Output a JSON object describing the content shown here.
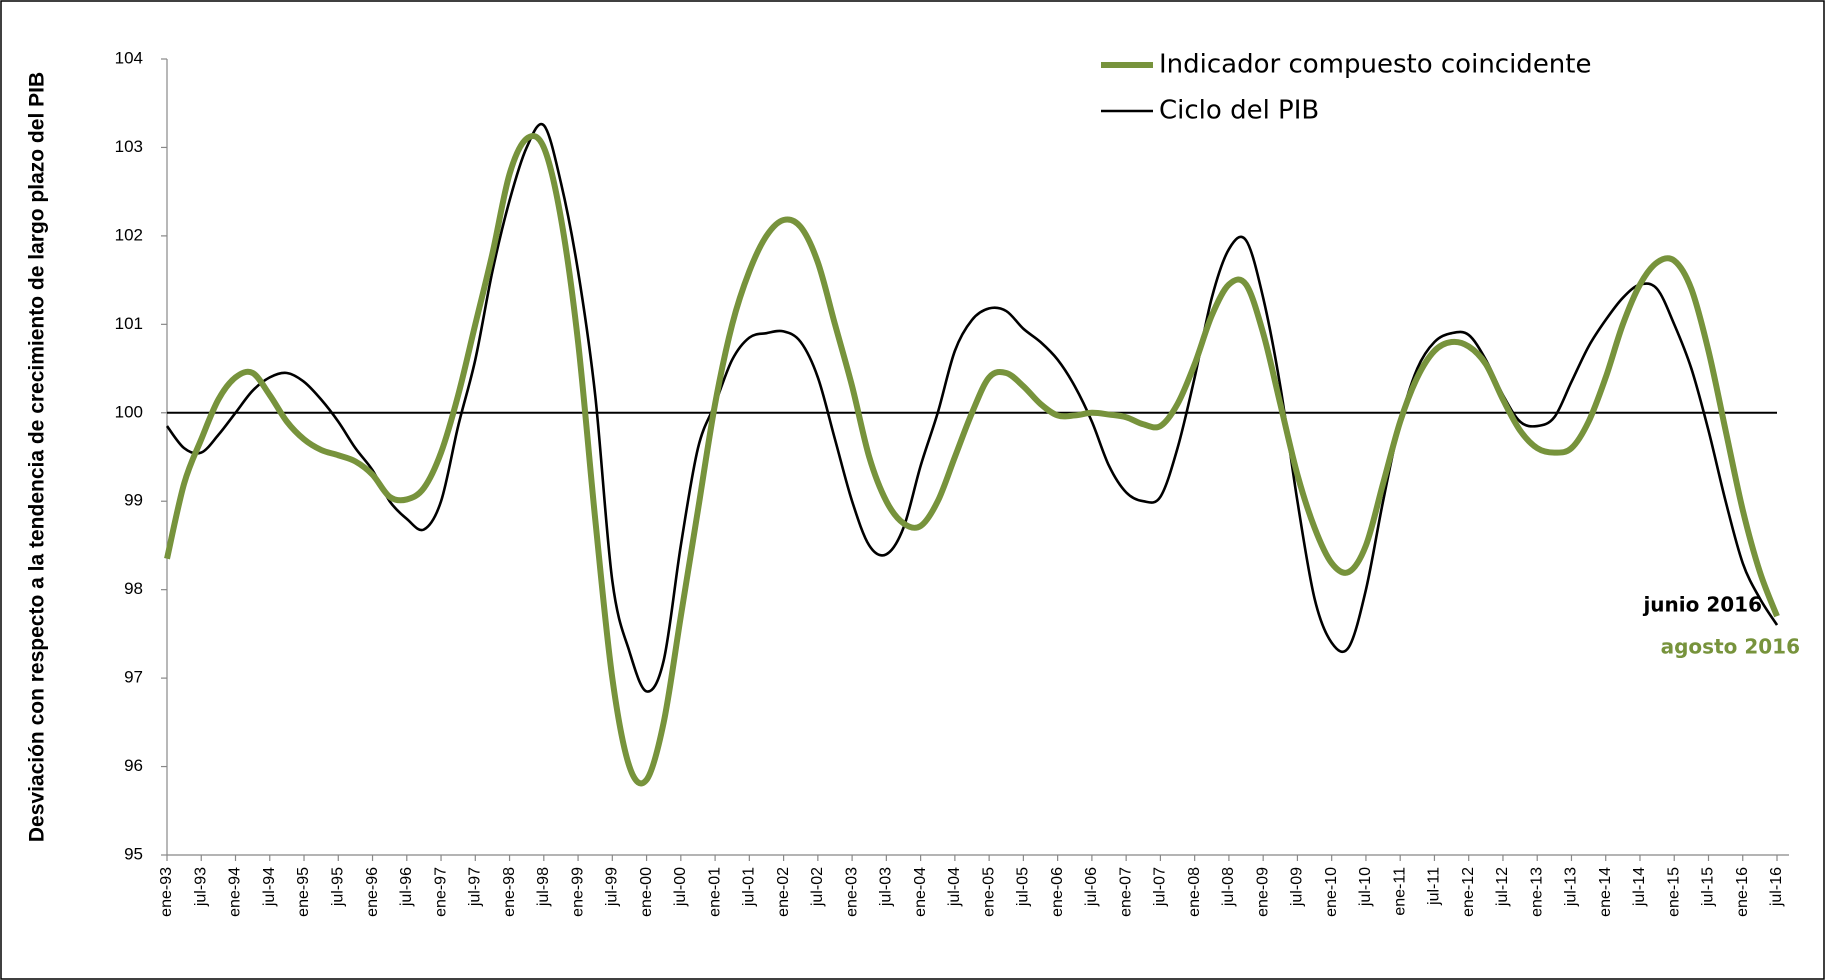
{
  "chart_data": {
    "type": "line",
    "y_axis_label": "Desviación con respecto a la tendencia de crecimiento de largo plazo del PIB",
    "categories": [
      "ene-93",
      null,
      "jul-93",
      null,
      "ene-94",
      null,
      "jul-94",
      null,
      "ene-95",
      null,
      "jul-95",
      null,
      "ene-96",
      null,
      "jul-96",
      null,
      "ene-97",
      null,
      "jul-97",
      null,
      "ene-98",
      null,
      "jul-98",
      null,
      "ene-99",
      null,
      "jul-99",
      null,
      "ene-00",
      null,
      "jul-00",
      null,
      "ene-01",
      null,
      "jul-01",
      null,
      "ene-02",
      null,
      "jul-02",
      null,
      "ene-03",
      null,
      "jul-03",
      null,
      "ene-04",
      null,
      "jul-04",
      null,
      "ene-05",
      null,
      "jul-05",
      null,
      "ene-06",
      null,
      "jul-06",
      null,
      "ene-07",
      null,
      "jul-07",
      null,
      "ene-08",
      null,
      "jul-08",
      null,
      "ene-09",
      null,
      "jul-09",
      null,
      "ene-10",
      null,
      "jul-10",
      null,
      "ene-11",
      null,
      "jul-11",
      null,
      "ene-12",
      null,
      "jul-12",
      null,
      "ene-13",
      null,
      "jul-13",
      null,
      "ene-14",
      null,
      "jul-14",
      null,
      "ene-15",
      null,
      "jul-15",
      null,
      "ene-16",
      null,
      "jul-16"
    ],
    "series": [
      {
        "name": "Indicador compuesto coincidente",
        "color": "#77933c",
        "values": [
          98.35,
          99.2,
          99.7,
          100.15,
          100.4,
          100.45,
          100.2,
          99.9,
          99.7,
          99.58,
          99.52,
          99.45,
          99.3,
          99.05,
          99.02,
          99.15,
          99.55,
          100.2,
          101.0,
          101.8,
          102.7,
          103.1,
          103.0,
          102.2,
          100.8,
          98.8,
          97.0,
          96.0,
          95.85,
          96.5,
          97.7,
          98.9,
          100.1,
          101.0,
          101.6,
          102.0,
          102.18,
          102.1,
          101.7,
          101.0,
          100.3,
          99.5,
          99.0,
          98.75,
          98.72,
          99.0,
          99.5,
          100.0,
          100.4,
          100.45,
          100.3,
          100.1,
          99.97,
          99.97,
          100.0,
          99.98,
          99.95,
          99.87,
          99.85,
          100.1,
          100.55,
          101.1,
          101.45,
          101.45,
          100.9,
          100.1,
          99.3,
          98.7,
          98.3,
          98.2,
          98.5,
          99.2,
          99.9,
          100.4,
          100.7,
          100.8,
          100.75,
          100.55,
          100.15,
          99.8,
          99.6,
          99.55,
          99.6,
          99.9,
          100.4,
          101.0,
          101.45,
          101.7,
          101.72,
          101.4,
          100.7,
          99.8,
          98.9,
          98.2,
          97.7
        ]
      },
      {
        "name": "Ciclo del PIB",
        "color": "#000000",
        "values": [
          99.85,
          99.6,
          99.55,
          99.75,
          100.0,
          100.25,
          100.4,
          100.45,
          100.35,
          100.15,
          99.9,
          99.6,
          99.35,
          99.0,
          98.8,
          98.68,
          99.0,
          99.85,
          100.6,
          101.6,
          102.4,
          103.0,
          103.25,
          102.6,
          101.6,
          100.2,
          98.1,
          97.3,
          96.85,
          97.2,
          98.5,
          99.6,
          100.1,
          100.6,
          100.85,
          100.9,
          100.92,
          100.8,
          100.4,
          99.7,
          99.0,
          98.5,
          98.4,
          98.7,
          99.4,
          100.0,
          100.7,
          101.05,
          101.18,
          101.15,
          100.95,
          100.8,
          100.6,
          100.3,
          99.9,
          99.4,
          99.1,
          99.0,
          99.05,
          99.6,
          100.4,
          101.3,
          101.85,
          101.95,
          101.3,
          100.3,
          99.0,
          97.9,
          97.4,
          97.35,
          98.0,
          99.0,
          99.9,
          100.5,
          100.8,
          100.9,
          100.88,
          100.6,
          100.2,
          99.9,
          99.85,
          99.95,
          100.35,
          100.75,
          101.05,
          101.3,
          101.45,
          101.4,
          101.0,
          100.5,
          99.8,
          99.0,
          98.3,
          97.9,
          97.6
        ]
      }
    ],
    "annotations": [
      "junio 2016",
      "agosto 2016"
    ],
    "reference_line": 100,
    "ylim": [
      95,
      104
    ],
    "yticks": [
      95,
      96,
      97,
      98,
      99,
      100,
      101,
      102,
      103,
      104
    ],
    "legend": "top-right"
  }
}
